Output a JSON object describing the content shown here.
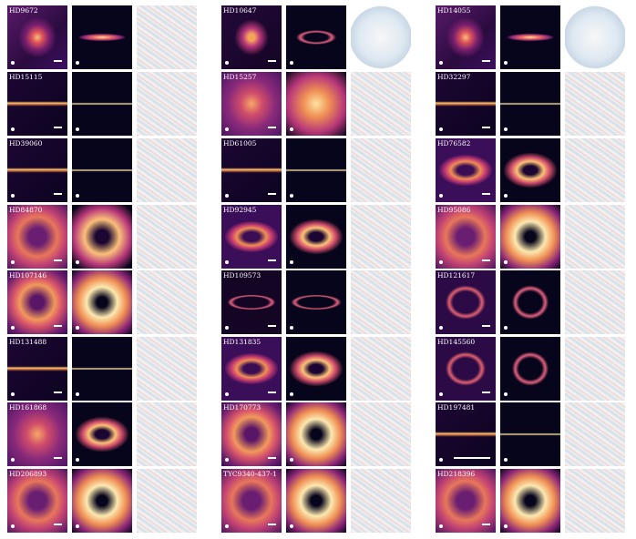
{
  "targets": [
    {
      "name": "HD9672",
      "obs": "thin",
      "model": "thin",
      "res": "noise"
    },
    {
      "name": "HD10647",
      "obs": "ring-thin",
      "model": "ring-thin",
      "res": "circle"
    },
    {
      "name": "HD14055",
      "obs": "thin",
      "model": "thin",
      "res": "circle"
    },
    {
      "name": "HD15115",
      "obs": "edge",
      "model": "edge",
      "res": "noise"
    },
    {
      "name": "HD15257",
      "obs": "blob",
      "model": "blob",
      "res": "noise"
    },
    {
      "name": "HD32297",
      "obs": "edge",
      "model": "edge",
      "res": "noise"
    },
    {
      "name": "HD39060",
      "obs": "edge",
      "model": "edge",
      "res": "noise"
    },
    {
      "name": "HD61005",
      "obs": "edge",
      "model": "edge",
      "res": "noise"
    },
    {
      "name": "HD76582",
      "obs": "ring-mid",
      "model": "ring-mid",
      "res": "noise"
    },
    {
      "name": "HD84870",
      "obs": "ring-wide",
      "model": "ring-wide",
      "res": "noise"
    },
    {
      "name": "HD92945",
      "obs": "ring-mid",
      "model": "ring-mid",
      "res": "noise"
    },
    {
      "name": "HD95086",
      "obs": "ring-wide",
      "model": "ring-full",
      "res": "noise"
    },
    {
      "name": "HD107146",
      "obs": "ring-full",
      "model": "ring-full",
      "res": "noise"
    },
    {
      "name": "HD109573",
      "obs": "ellipse",
      "model": "ellipse",
      "res": "noise"
    },
    {
      "name": "HD121617",
      "obs": "ring-thin-circle",
      "model": "ring-thin-circle",
      "res": "noise"
    },
    {
      "name": "HD131488",
      "obs": "edge",
      "model": "edge",
      "res": "noise"
    },
    {
      "name": "HD131835",
      "obs": "ring-mid",
      "model": "ring-mid",
      "res": "noise"
    },
    {
      "name": "HD145560",
      "obs": "ring-thin-circle",
      "model": "ring-thin-circle",
      "res": "noise"
    },
    {
      "name": "HD161868",
      "obs": "blob",
      "model": "ring-mid",
      "res": "noise"
    },
    {
      "name": "HD170773",
      "obs": "ring-full",
      "model": "ring-full",
      "res": "noise"
    },
    {
      "name": "HD197481",
      "obs": "edge",
      "model": "edge",
      "res": "noise"
    },
    {
      "name": "HD206893",
      "obs": "ring-wide",
      "model": "ring-full",
      "res": "noise"
    },
    {
      "name": "TYC9340-437-1",
      "obs": "ring-wide",
      "model": "ring-full",
      "res": "noise"
    },
    {
      "name": "HD218396",
      "obs": "ring-wide",
      "model": "ring-full",
      "res": "noise"
    }
  ],
  "colors": {
    "magma_dark": "#07051b",
    "magma_mid": "#b63679",
    "magma_bright": "#fcfdbf",
    "residual_red": "#c0392b",
    "residual_blue": "#2b7bba",
    "residual_white": "#f7f7f7"
  }
}
